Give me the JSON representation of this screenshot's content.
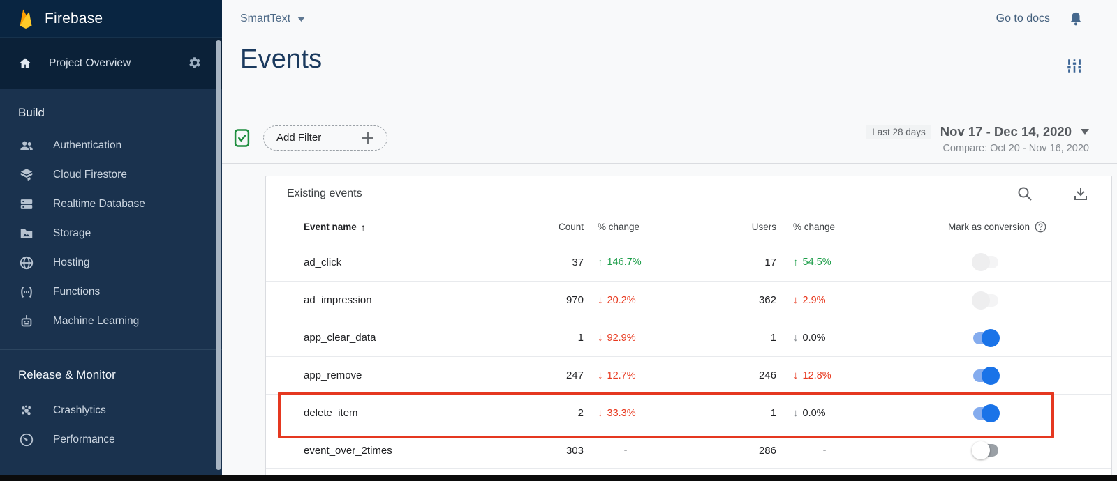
{
  "brand": {
    "name": "Firebase"
  },
  "sidebar": {
    "project_overview": {
      "icon": "home-icon",
      "label": "Project Overview",
      "settings_icon": "gear-icon"
    },
    "sections": [
      {
        "label": "Build",
        "items": [
          {
            "icon": "users",
            "label": "Authentication"
          },
          {
            "icon": "firestore",
            "label": "Cloud Firestore"
          },
          {
            "icon": "database",
            "label": "Realtime Database"
          },
          {
            "icon": "storage",
            "label": "Storage"
          },
          {
            "icon": "hosting",
            "label": "Hosting"
          },
          {
            "icon": "functions",
            "label": "Functions"
          },
          {
            "icon": "ml",
            "label": "Machine Learning"
          }
        ]
      },
      {
        "label": "Release & Monitor",
        "items": [
          {
            "icon": "crashlytics",
            "label": "Crashlytics"
          },
          {
            "icon": "performance",
            "label": "Performance"
          }
        ]
      }
    ]
  },
  "topbar": {
    "project_selector": "SmartText",
    "go_to_docs": "Go to docs",
    "bell_icon": "notifications-icon"
  },
  "page": {
    "title": "Events",
    "tune_icon": "filter-settings-icon"
  },
  "filter_bar": {
    "status_icon": "filter-applied-check-icon",
    "add_filter_label": "Add Filter",
    "range_chip": "Last 28 days",
    "date_range": "Nov 17 - Dec 14, 2020",
    "compare": "Compare: Oct 20 - Nov 16, 2020"
  },
  "table": {
    "title": "Existing events",
    "columns": {
      "event_name": "Event name",
      "count": "Count",
      "count_change": "% change",
      "users": "Users",
      "users_change": "% change",
      "conversion": "Mark as conversion"
    },
    "rows": [
      {
        "name": "ad_click",
        "count": "37",
        "count_change": "146.7%",
        "count_trend": "up",
        "users": "17",
        "users_change": "54.5%",
        "users_trend": "up",
        "toggle": "disabled",
        "highlighted": false
      },
      {
        "name": "ad_impression",
        "count": "970",
        "count_change": "20.2%",
        "count_trend": "down",
        "users": "362",
        "users_change": "2.9%",
        "users_trend": "down",
        "toggle": "disabled",
        "highlighted": false
      },
      {
        "name": "app_clear_data",
        "count": "1",
        "count_change": "92.9%",
        "count_trend": "down",
        "users": "1",
        "users_change": "0.0%",
        "users_trend": "down-neutral",
        "toggle": "on",
        "highlighted": false
      },
      {
        "name": "app_remove",
        "count": "247",
        "count_change": "12.7%",
        "count_trend": "down",
        "users": "246",
        "users_change": "12.8%",
        "users_trend": "down",
        "toggle": "on",
        "highlighted": false
      },
      {
        "name": "delete_item",
        "count": "2",
        "count_change": "33.3%",
        "count_trend": "down",
        "users": "1",
        "users_change": "0.0%",
        "users_trend": "down-neutral",
        "toggle": "on",
        "highlighted": true
      },
      {
        "name": "event_over_2times",
        "count": "303",
        "count_change": "-",
        "count_trend": "none",
        "users": "286",
        "users_change": "-",
        "users_trend": "none",
        "toggle": "off",
        "highlighted": false
      }
    ]
  },
  "colors": {
    "sidebar_bg": "#1a324e",
    "sidebar_header_bg": "#092541",
    "accent_blue": "#1a73e8",
    "toggle_track_on": "#85acee",
    "positive_green": "#1e9e4a",
    "negative_red": "#e8391f",
    "annotation_red": "#e53820",
    "page_bg": "#f8f9fa",
    "title_navy": "#1b3a5e"
  }
}
